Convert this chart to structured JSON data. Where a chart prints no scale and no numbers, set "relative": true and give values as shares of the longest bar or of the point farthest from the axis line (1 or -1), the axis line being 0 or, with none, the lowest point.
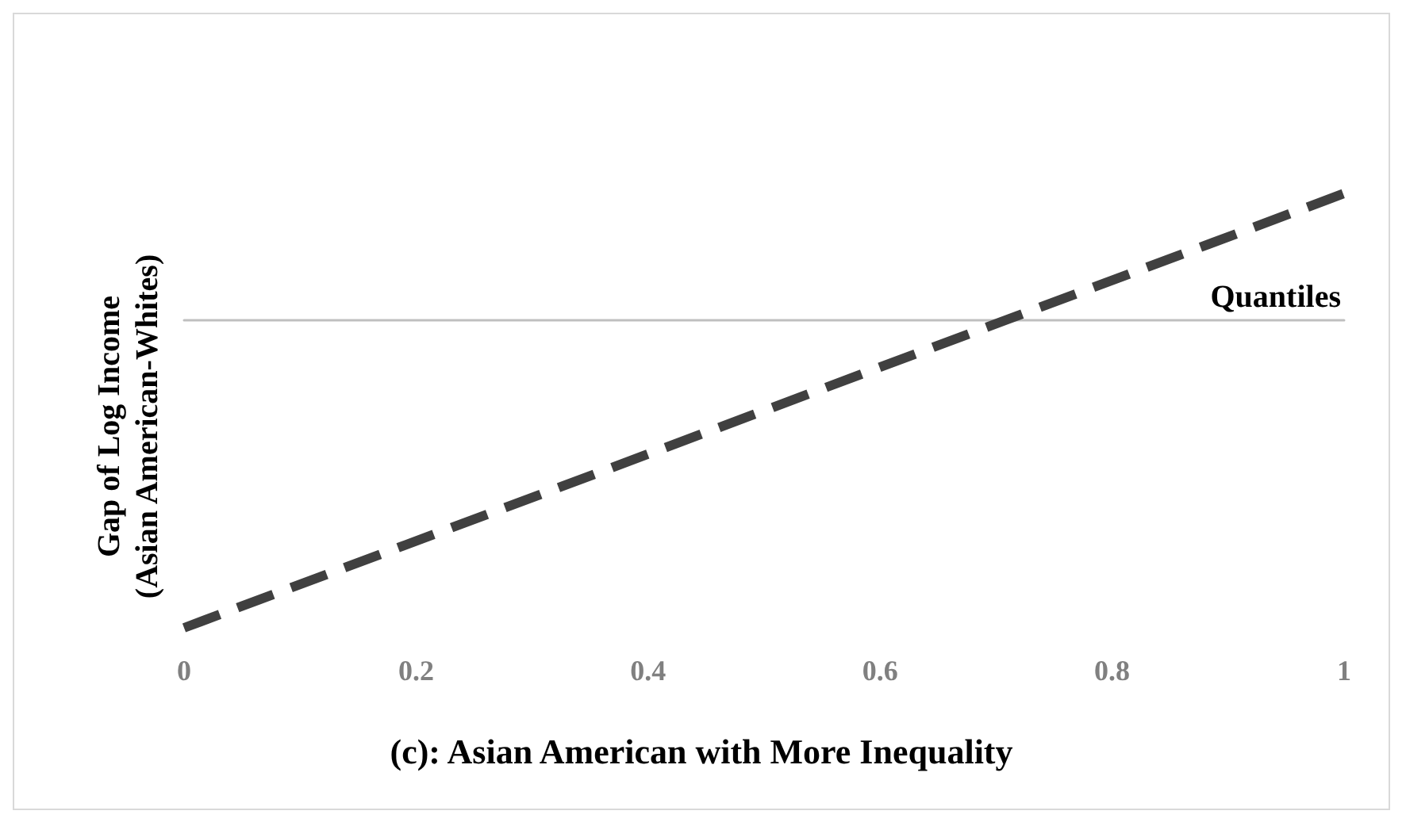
{
  "chart_data": {
    "type": "line",
    "title": "(c): Asian American with More Inequality",
    "xlabel": "Quantiles",
    "ylabel": "Gap of Log Income\n(Asian American-Whites)",
    "x": [
      0,
      1
    ],
    "values": [
      -1,
      0.41
    ],
    "color": "#404040",
    "relative": true,
    "xlim": [
      0,
      1
    ],
    "xticks": [
      0,
      0.2,
      0.4,
      0.6,
      0.8,
      1
    ],
    "grid": false,
    "marker": "none",
    "line_style": "dashed"
  }
}
